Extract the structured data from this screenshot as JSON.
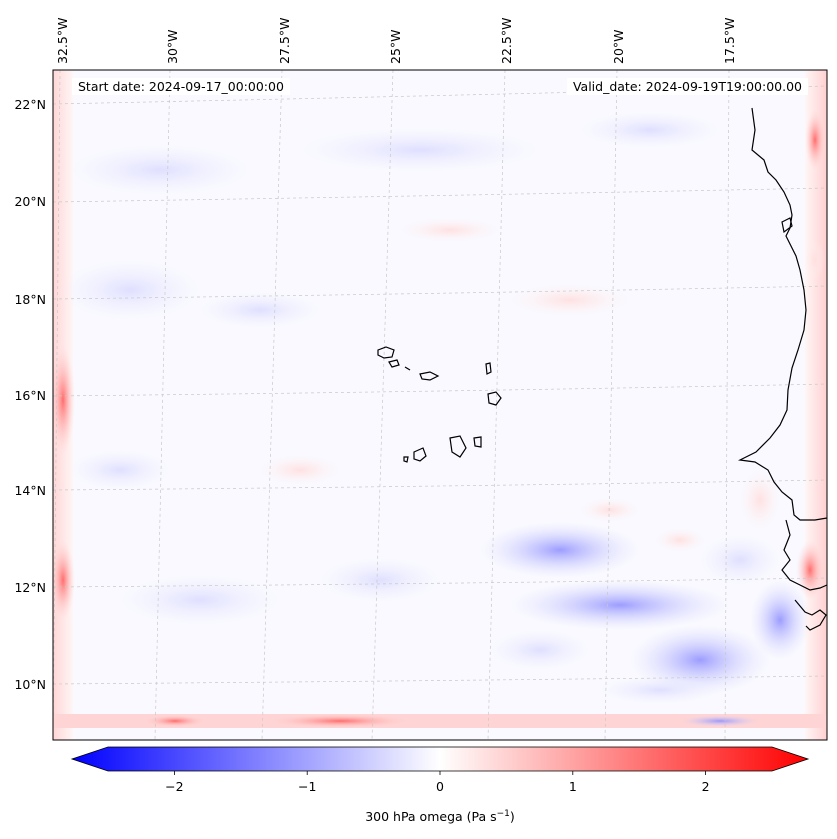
{
  "map": {
    "start_date": "Start date: 2024-09-17_00:00:00",
    "valid_date": "Valid_date: 2024-09-19T19:00:00.00",
    "lon_labels": [
      "32.5°W",
      "30°W",
      "27.5°W",
      "25°W",
      "22.5°W",
      "20°W",
      "17.5°W"
    ],
    "lat_labels": [
      "22°N",
      "20°N",
      "18°N",
      "16°N",
      "14°N",
      "12°N",
      "10°N"
    ],
    "colors": {
      "negative": "#0000ff",
      "neutral": "#ffffff",
      "positive": "#ff0000",
      "coast": "#000000",
      "grid": "#c8c8c8"
    }
  },
  "colorbar": {
    "label_main": "300 hPa omega (Pa s",
    "label_sup": "−1",
    "label_close": ")",
    "min": -2.7,
    "max": 2.7,
    "extend": "both",
    "ticks": [
      {
        "value": -2,
        "label": "−2"
      },
      {
        "value": -1,
        "label": "−1"
      },
      {
        "value": 0,
        "label": "0"
      },
      {
        "value": 1,
        "label": "1"
      },
      {
        "value": 2,
        "label": "2"
      }
    ]
  }
}
